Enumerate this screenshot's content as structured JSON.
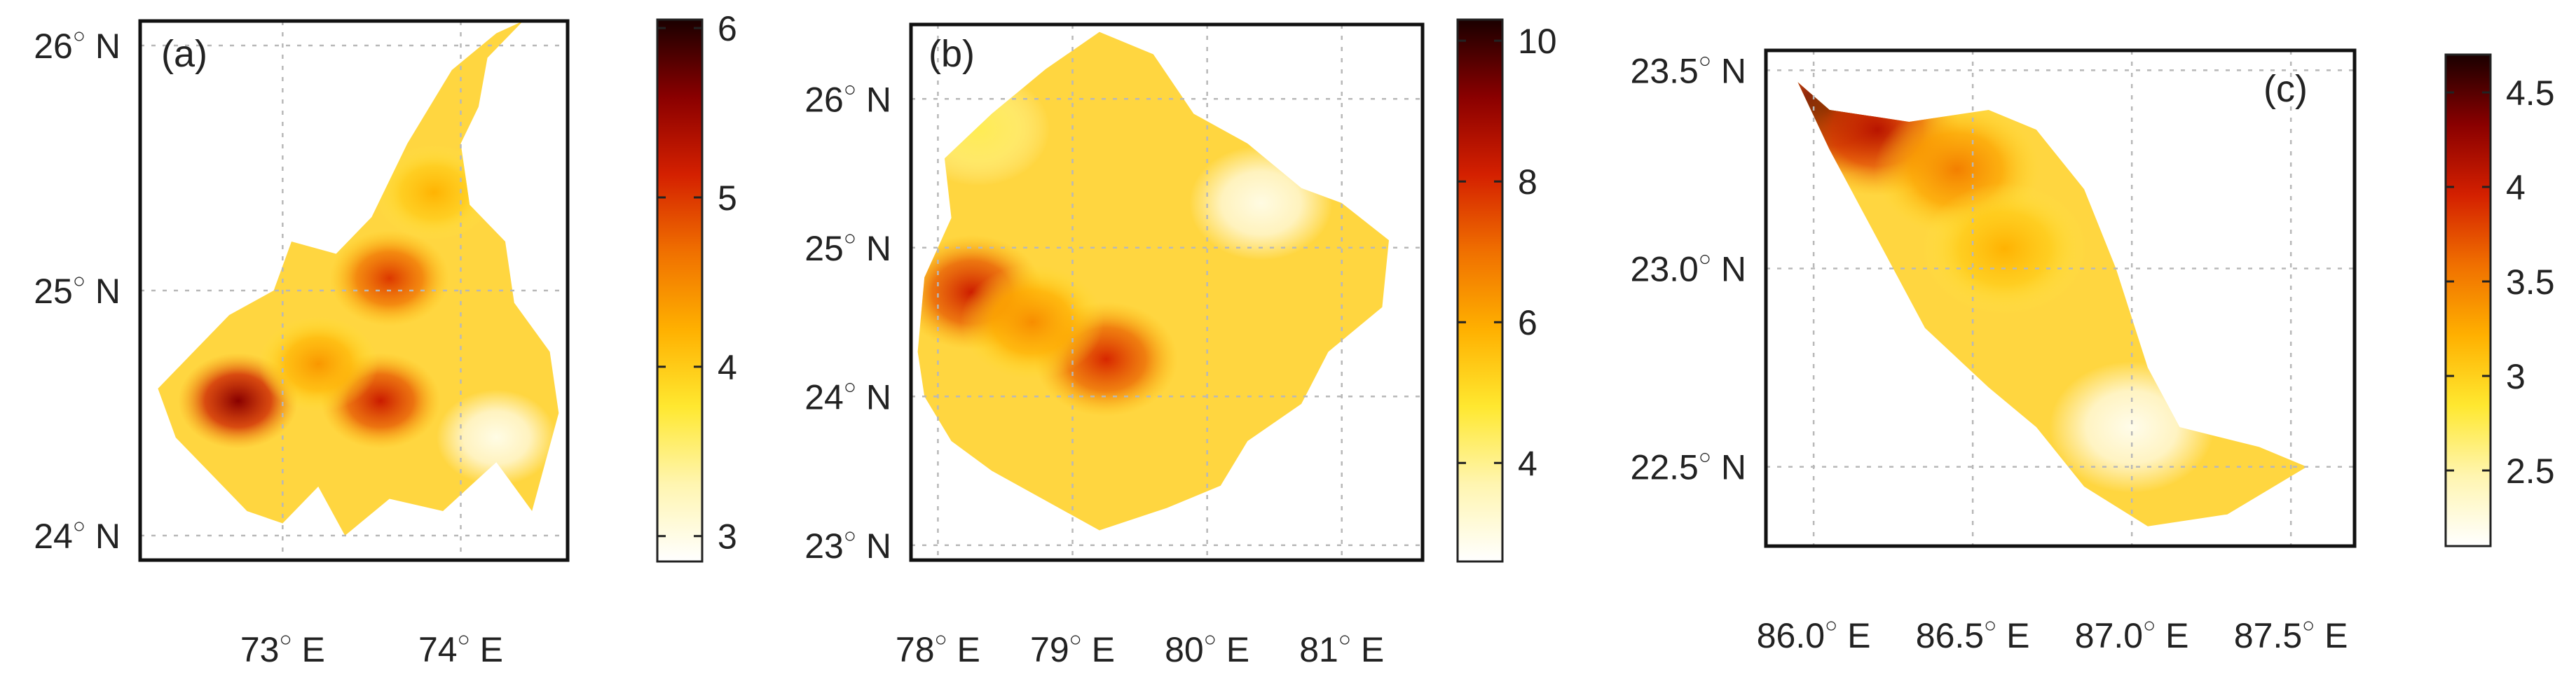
{
  "colors": {
    "colormap": [
      "#ffffff",
      "#fff5b0",
      "#ffe830",
      "#ffb000",
      "#f07000",
      "#d42000",
      "#8a0000",
      "#1a0000"
    ],
    "region_base": "#ffd640",
    "hotspot": "#b50d00",
    "frame": "#111111",
    "grid": "#b8b8b8"
  },
  "chart_data": [
    {
      "type": "heatmap",
      "panel_label": "(a)",
      "title": "",
      "xlabel": "",
      "ylabel": "",
      "grid": true,
      "xlim": [
        72.2,
        74.6
      ],
      "ylim": [
        23.9,
        26.1
      ],
      "x_ticks": [
        {
          "value": 73,
          "label": "73",
          "unit": "E"
        },
        {
          "value": 74,
          "label": "74",
          "unit": "E"
        }
      ],
      "y_ticks": [
        {
          "value": 24,
          "label": "24",
          "unit": "N"
        },
        {
          "value": 25,
          "label": "25",
          "unit": "N"
        },
        {
          "value": 26,
          "label": "26",
          "unit": "N"
        }
      ],
      "colorbar": {
        "range": [
          2.85,
          6.05
        ],
        "ticks": [
          {
            "value": 3,
            "label": "3"
          },
          {
            "value": 4,
            "label": "4"
          },
          {
            "value": 5,
            "label": "5"
          },
          {
            "value": 6,
            "label": "6"
          }
        ]
      },
      "region_outline": [
        [
          72.3,
          24.6
        ],
        [
          72.4,
          24.4
        ],
        [
          72.6,
          24.25
        ],
        [
          72.8,
          24.1
        ],
        [
          73.0,
          24.05
        ],
        [
          73.2,
          24.2
        ],
        [
          73.35,
          24.0
        ],
        [
          73.6,
          24.15
        ],
        [
          73.9,
          24.1
        ],
        [
          74.2,
          24.3
        ],
        [
          74.4,
          24.1
        ],
        [
          74.55,
          24.5
        ],
        [
          74.5,
          24.75
        ],
        [
          74.3,
          24.95
        ],
        [
          74.25,
          25.2
        ],
        [
          74.05,
          25.35
        ],
        [
          74.0,
          25.6
        ],
        [
          74.1,
          25.75
        ],
        [
          74.15,
          25.95
        ],
        [
          74.35,
          26.1
        ],
        [
          74.2,
          26.05
        ],
        [
          73.95,
          25.9
        ],
        [
          73.7,
          25.6
        ],
        [
          73.5,
          25.3
        ],
        [
          73.3,
          25.15
        ],
        [
          73.05,
          25.2
        ],
        [
          72.95,
          25.0
        ],
        [
          72.7,
          24.9
        ],
        [
          72.5,
          24.75
        ]
      ],
      "hotspots": [
        {
          "lon": 72.75,
          "lat": 24.55,
          "value": 5.6
        },
        {
          "lon": 73.55,
          "lat": 24.55,
          "value": 5.2
        },
        {
          "lon": 73.6,
          "lat": 25.05,
          "value": 5.0
        },
        {
          "lon": 73.2,
          "lat": 24.7,
          "value": 4.4
        },
        {
          "lon": 73.85,
          "lat": 25.4,
          "value": 4.2
        },
        {
          "lon": 74.2,
          "lat": 24.4,
          "value": 3.0
        }
      ]
    },
    {
      "type": "heatmap",
      "panel_label": "(b)",
      "title": "",
      "xlabel": "",
      "ylabel": "",
      "grid": true,
      "xlim": [
        77.8,
        81.6
      ],
      "ylim": [
        22.9,
        26.5
      ],
      "x_ticks": [
        {
          "value": 78,
          "label": "78",
          "unit": "E"
        },
        {
          "value": 79,
          "label": "79",
          "unit": "E"
        },
        {
          "value": 80,
          "label": "80",
          "unit": "E"
        },
        {
          "value": 81,
          "label": "81",
          "unit": "E"
        }
      ],
      "y_ticks": [
        {
          "value": 23,
          "label": "23",
          "unit": "N"
        },
        {
          "value": 24,
          "label": "24",
          "unit": "N"
        },
        {
          "value": 25,
          "label": "25",
          "unit": "N"
        },
        {
          "value": 26,
          "label": "26",
          "unit": "N"
        }
      ],
      "colorbar": {
        "range": [
          2.6,
          10.3
        ],
        "ticks": [
          {
            "value": 4,
            "label": "4"
          },
          {
            "value": 6,
            "label": "6"
          },
          {
            "value": 8,
            "label": "8"
          },
          {
            "value": 10,
            "label": "10"
          }
        ]
      },
      "region_outline": [
        [
          77.85,
          24.3
        ],
        [
          77.9,
          24.8
        ],
        [
          78.1,
          25.2
        ],
        [
          78.05,
          25.6
        ],
        [
          78.4,
          25.9
        ],
        [
          78.8,
          26.2
        ],
        [
          79.2,
          26.45
        ],
        [
          79.6,
          26.3
        ],
        [
          79.9,
          25.9
        ],
        [
          80.3,
          25.7
        ],
        [
          80.7,
          25.4
        ],
        [
          81.0,
          25.3
        ],
        [
          81.35,
          25.05
        ],
        [
          81.3,
          24.6
        ],
        [
          80.9,
          24.3
        ],
        [
          80.7,
          23.95
        ],
        [
          80.3,
          23.7
        ],
        [
          80.1,
          23.4
        ],
        [
          79.7,
          23.25
        ],
        [
          79.2,
          23.1
        ],
        [
          78.8,
          23.3
        ],
        [
          78.4,
          23.5
        ],
        [
          78.1,
          23.7
        ],
        [
          77.9,
          24.0
        ]
      ],
      "hotspots": [
        {
          "lon": 78.25,
          "lat": 24.7,
          "value": 8.2
        },
        {
          "lon": 79.25,
          "lat": 24.25,
          "value": 8.0
        },
        {
          "lon": 78.7,
          "lat": 24.5,
          "value": 6.5
        },
        {
          "lon": 78.3,
          "lat": 25.8,
          "value": 4.5
        },
        {
          "lon": 80.4,
          "lat": 25.3,
          "value": 3.0
        }
      ]
    },
    {
      "type": "heatmap",
      "panel_label": "(c)",
      "title": "",
      "xlabel": "",
      "ylabel": "",
      "grid": true,
      "xlim": [
        85.85,
        87.7
      ],
      "ylim": [
        22.3,
        23.55
      ],
      "x_ticks": [
        {
          "value": 86.0,
          "label": "86.0",
          "unit": "E"
        },
        {
          "value": 86.5,
          "label": "86.5",
          "unit": "E"
        },
        {
          "value": 87.0,
          "label": "87.0",
          "unit": "E"
        },
        {
          "value": 87.5,
          "label": "87.5",
          "unit": "E"
        }
      ],
      "y_ticks": [
        {
          "value": 22.5,
          "label": "22.5",
          "unit": "N"
        },
        {
          "value": 23.0,
          "label": "23.0",
          "unit": "N"
        },
        {
          "value": 23.5,
          "label": "23.5",
          "unit": "N"
        }
      ],
      "colorbar": {
        "range": [
          2.1,
          4.7
        ],
        "ticks": [
          {
            "value": 2.5,
            "label": "2.5"
          },
          {
            "value": 3,
            "label": "3"
          },
          {
            "value": 3.5,
            "label": "3.5"
          },
          {
            "value": 4,
            "label": "4"
          },
          {
            "value": 4.5,
            "label": "4.5"
          }
        ]
      },
      "region_outline": [
        [
          85.95,
          23.47
        ],
        [
          86.05,
          23.4
        ],
        [
          86.3,
          23.37
        ],
        [
          86.55,
          23.4
        ],
        [
          86.7,
          23.35
        ],
        [
          86.85,
          23.2
        ],
        [
          86.95,
          23.0
        ],
        [
          87.05,
          22.75
        ],
        [
          87.15,
          22.6
        ],
        [
          87.4,
          22.55
        ],
        [
          87.55,
          22.5
        ],
        [
          87.3,
          22.38
        ],
        [
          87.05,
          22.35
        ],
        [
          86.85,
          22.45
        ],
        [
          86.7,
          22.6
        ],
        [
          86.55,
          22.7
        ],
        [
          86.35,
          22.85
        ],
        [
          86.25,
          23.0
        ],
        [
          86.15,
          23.15
        ],
        [
          86.05,
          23.3
        ]
      ],
      "hotspots": [
        {
          "lon": 86.05,
          "lat": 23.4,
          "value": 4.6
        },
        {
          "lon": 86.2,
          "lat": 23.35,
          "value": 4.1
        },
        {
          "lon": 86.45,
          "lat": 23.25,
          "value": 3.5
        },
        {
          "lon": 86.6,
          "lat": 23.05,
          "value": 3.2
        },
        {
          "lon": 87.0,
          "lat": 22.6,
          "value": 2.2
        }
      ]
    }
  ]
}
